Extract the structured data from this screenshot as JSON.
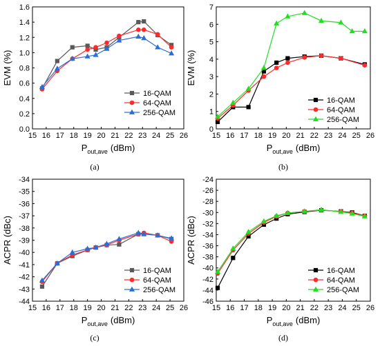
{
  "chart_data": [
    {
      "type": "line",
      "caption": "(a)",
      "xlabel": "P",
      "xlabel_sub": "out,ave",
      "xlabel_unit": "(dBm)",
      "ylabel": "EVM (%)",
      "xlim": [
        15,
        26
      ],
      "ylim": [
        0,
        1.6
      ],
      "xticks": [
        15,
        16,
        17,
        18,
        19,
        20,
        21,
        22,
        23,
        24,
        25,
        26
      ],
      "yticks": [
        "0.0",
        "0.2",
        "0.4",
        "0.6",
        "0.8",
        "1.0",
        "1.2",
        "1.4",
        "1.6"
      ],
      "ytick_values": [
        0,
        0.2,
        0.4,
        0.6,
        0.8,
        1.0,
        1.2,
        1.4,
        1.6
      ],
      "legend_position": "lower-right",
      "series": [
        {
          "name": "16-QAM",
          "color": "#595959",
          "marker": "square",
          "x": [
            15.7,
            16.8,
            17.9,
            19.0,
            19.6,
            20.4,
            21.3,
            22.7,
            23.1,
            24.1,
            25.1
          ],
          "y": [
            0.53,
            0.89,
            1.07,
            1.09,
            1.04,
            1.07,
            1.2,
            1.4,
            1.41,
            1.23,
            1.1
          ]
        },
        {
          "name": "64-QAM",
          "color": "#ff2a2a",
          "marker": "circle",
          "x": [
            15.7,
            16.8,
            17.9,
            19.0,
            19.6,
            20.4,
            21.3,
            22.7,
            23.1,
            24.1,
            25.1
          ],
          "y": [
            0.52,
            0.76,
            0.92,
            1.04,
            1.07,
            1.13,
            1.22,
            1.3,
            1.3,
            1.24,
            1.07
          ]
        },
        {
          "name": "256-QAM",
          "color": "#2b6ed8",
          "marker": "triangle",
          "x": [
            15.7,
            16.8,
            17.9,
            19.0,
            19.6,
            20.4,
            21.3,
            22.7,
            23.1,
            24.1,
            25.1
          ],
          "y": [
            0.55,
            0.79,
            0.92,
            0.95,
            0.97,
            1.05,
            1.16,
            1.21,
            1.19,
            1.07,
            0.99
          ]
        }
      ]
    },
    {
      "type": "line",
      "caption": "(b)",
      "xlabel": "P",
      "xlabel_sub": "out,ave",
      "xlabel_unit": "(dBm)",
      "ylabel": "EVM (%)",
      "xlim": [
        15,
        26
      ],
      "ylim": [
        0,
        7
      ],
      "xticks": [
        15,
        16,
        17,
        18,
        19,
        20,
        21,
        22,
        23,
        24,
        25,
        26
      ],
      "yticks": [
        "0",
        "1",
        "2",
        "3",
        "4",
        "5",
        "6",
        "7"
      ],
      "ytick_values": [
        0,
        1,
        2,
        3,
        4,
        5,
        6,
        7
      ],
      "legend_position": "lower-right",
      "series": [
        {
          "name": "16-QAM",
          "color": "#000000",
          "marker": "square",
          "x": [
            15.1,
            16.2,
            17.3,
            18.4,
            19.3,
            20.1,
            21.3,
            22.5,
            23.9,
            25.6
          ],
          "y": [
            0.4,
            1.25,
            1.25,
            3.3,
            3.8,
            4.05,
            4.15,
            4.2,
            4.05,
            3.7
          ]
        },
        {
          "name": "64-QAM",
          "color": "#ff2a2a",
          "marker": "circle",
          "x": [
            15.1,
            16.2,
            17.3,
            18.4,
            19.3,
            20.1,
            21.3,
            22.5,
            23.9,
            25.6
          ],
          "y": [
            0.6,
            1.35,
            2.2,
            3.0,
            3.5,
            3.8,
            4.1,
            4.2,
            4.05,
            3.65
          ]
        },
        {
          "name": "256-QAM",
          "color": "#22dd22",
          "marker": "triangle",
          "x": [
            15.1,
            16.2,
            17.3,
            18.4,
            19.3,
            20.1,
            21.3,
            22.5,
            23.9,
            24.7,
            25.6
          ],
          "y": [
            0.7,
            1.5,
            2.3,
            3.5,
            6.05,
            6.45,
            6.65,
            6.2,
            6.1,
            5.6,
            5.6
          ]
        }
      ]
    },
    {
      "type": "line",
      "caption": "(c)",
      "xlabel": "P",
      "xlabel_sub": "out,ave",
      "xlabel_unit": "(dBm)",
      "ylabel": "ACPR (dBc)",
      "xlim": [
        15,
        26
      ],
      "ylim": [
        -44,
        -34
      ],
      "xticks": [
        15,
        16,
        17,
        18,
        19,
        20,
        21,
        22,
        23,
        24,
        25,
        26
      ],
      "yticks": [
        "-44",
        "-43",
        "-42",
        "-41",
        "-40",
        "-39",
        "-38",
        "-37",
        "-36",
        "-35",
        "-34"
      ],
      "ytick_values": [
        -44,
        -43,
        -42,
        -41,
        -40,
        -39,
        -38,
        -37,
        -36,
        -35,
        -34
      ],
      "legend_position": "lower-right",
      "series": [
        {
          "name": "16-QAM",
          "color": "#595959",
          "marker": "square",
          "x": [
            15.7,
            16.8,
            17.9,
            19.0,
            19.6,
            20.4,
            21.3,
            22.7,
            23.1,
            24.1,
            25.1
          ],
          "y": [
            -42.8,
            -40.9,
            -40.3,
            -39.8,
            -39.6,
            -39.4,
            -39.35,
            -38.5,
            -38.5,
            -38.6,
            -38.9
          ]
        },
        {
          "name": "64-QAM",
          "color": "#ff2a2a",
          "marker": "circle",
          "x": [
            15.7,
            16.8,
            17.9,
            19.0,
            19.6,
            20.4,
            21.3,
            22.7,
            23.1,
            24.1,
            25.1
          ],
          "y": [
            -42.4,
            -40.9,
            -40.2,
            -39.8,
            -39.6,
            -39.4,
            -39.0,
            -38.5,
            -38.4,
            -38.6,
            -39.1
          ]
        },
        {
          "name": "256-QAM",
          "color": "#2b6ed8",
          "marker": "triangle",
          "x": [
            15.7,
            16.8,
            17.9,
            19.0,
            19.6,
            20.4,
            21.3,
            22.7,
            23.1,
            24.1,
            25.1
          ],
          "y": [
            -42.3,
            -40.9,
            -40.0,
            -39.7,
            -39.6,
            -39.3,
            -38.9,
            -38.4,
            -38.5,
            -38.6,
            -38.85
          ]
        }
      ]
    },
    {
      "type": "line",
      "caption": "(d)",
      "xlabel": "P",
      "xlabel_sub": "out,ave",
      "xlabel_unit": "(dBm)",
      "ylabel": "ACPR (dBc)",
      "xlim": [
        15,
        26
      ],
      "ylim": [
        -46,
        -24
      ],
      "xticks": [
        15,
        16,
        17,
        18,
        19,
        20,
        21,
        22,
        23,
        24,
        25,
        26
      ],
      "yticks": [
        "-46",
        "-44",
        "-42",
        "-40",
        "-38",
        "-36",
        "-34",
        "-32",
        "-30",
        "-28",
        "-26",
        "-24"
      ],
      "ytick_values": [
        -46,
        -44,
        -42,
        -40,
        -38,
        -36,
        -34,
        -32,
        -30,
        -28,
        -26,
        -24
      ],
      "legend_position": "lower-right",
      "series": [
        {
          "name": "16-QAM",
          "color": "#000000",
          "marker": "square",
          "x": [
            15.1,
            16.2,
            17.3,
            18.4,
            19.3,
            20.1,
            21.3,
            22.5,
            23.9,
            24.7,
            25.6
          ],
          "y": [
            -43.6,
            -38.2,
            -34.3,
            -32.2,
            -31.1,
            -30.3,
            -29.9,
            -29.6,
            -29.8,
            -30.0,
            -30.6
          ]
        },
        {
          "name": "64-QAM",
          "color": "#ff2a2a",
          "marker": "circle",
          "x": [
            15.1,
            16.2,
            17.3,
            18.4,
            19.3,
            20.1,
            21.3,
            22.5,
            23.9,
            24.7,
            25.6
          ],
          "y": [
            -41.0,
            -36.8,
            -33.8,
            -31.8,
            -30.7,
            -30.1,
            -29.8,
            -29.6,
            -29.8,
            -30.1,
            -30.6
          ]
        },
        {
          "name": "256-QAM",
          "color": "#22dd22",
          "marker": "triangle",
          "x": [
            15.1,
            16.2,
            17.3,
            18.4,
            19.3,
            20.1,
            21.3,
            22.5,
            23.9,
            24.7,
            25.6
          ],
          "y": [
            -40.7,
            -36.5,
            -33.5,
            -31.6,
            -30.6,
            -30.1,
            -29.8,
            -29.5,
            -29.9,
            -30.2,
            -30.7
          ]
        }
      ]
    }
  ]
}
